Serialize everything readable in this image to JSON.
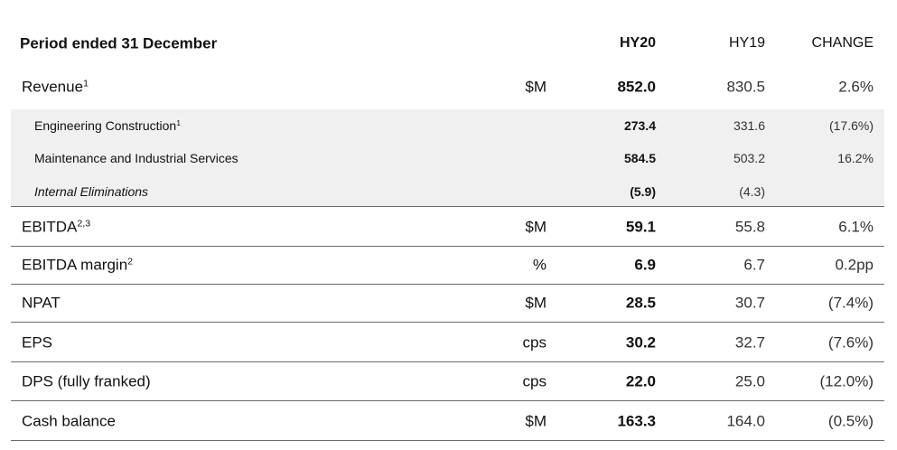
{
  "header": {
    "title": "Period ended 31 December",
    "hy20": "HY20",
    "hy19": "HY19",
    "change": "CHANGE"
  },
  "revenue": {
    "label": "Revenue",
    "sup": "1",
    "unit": "$M",
    "hy20": "852.0",
    "hy19": "830.5",
    "change": "2.6%"
  },
  "revenue_breakdown": [
    {
      "label": "Engineering Construction",
      "sup": "1",
      "hy20": "273.4",
      "hy19": "331.6",
      "change": "(17.6%)"
    },
    {
      "label": "Maintenance and Industrial Services",
      "hy20": "584.5",
      "hy19": "503.2",
      "change": "16.2%"
    },
    {
      "label": "Internal Eliminations",
      "hy20": "(5.9)",
      "hy19": "(4.3)"
    }
  ],
  "metrics": [
    {
      "label": "EBITDA",
      "sup": "2,3",
      "unit": "$M",
      "hy20": "59.1",
      "hy19": "55.8",
      "change": "6.1%"
    },
    {
      "label": "EBITDA margin",
      "sup": "2",
      "unit": "%",
      "hy20": "6.9",
      "hy19": "6.7",
      "change": "0.2pp"
    },
    {
      "label": "NPAT",
      "unit": "$M",
      "hy20": "28.5",
      "hy19": "30.7",
      "change": "(7.4%)"
    },
    {
      "label": "EPS",
      "unit": "cps",
      "hy20": "30.2",
      "hy19": "32.7",
      "change": "(7.6%)"
    },
    {
      "label": "DPS (fully franked)",
      "unit": "cps",
      "hy20": "22.0",
      "hy19": "25.0",
      "change": "(12.0%)"
    },
    {
      "label": "Cash balance",
      "unit": "$M",
      "hy20": "163.3",
      "hy19": "164.0",
      "change": "(0.5%)"
    }
  ]
}
